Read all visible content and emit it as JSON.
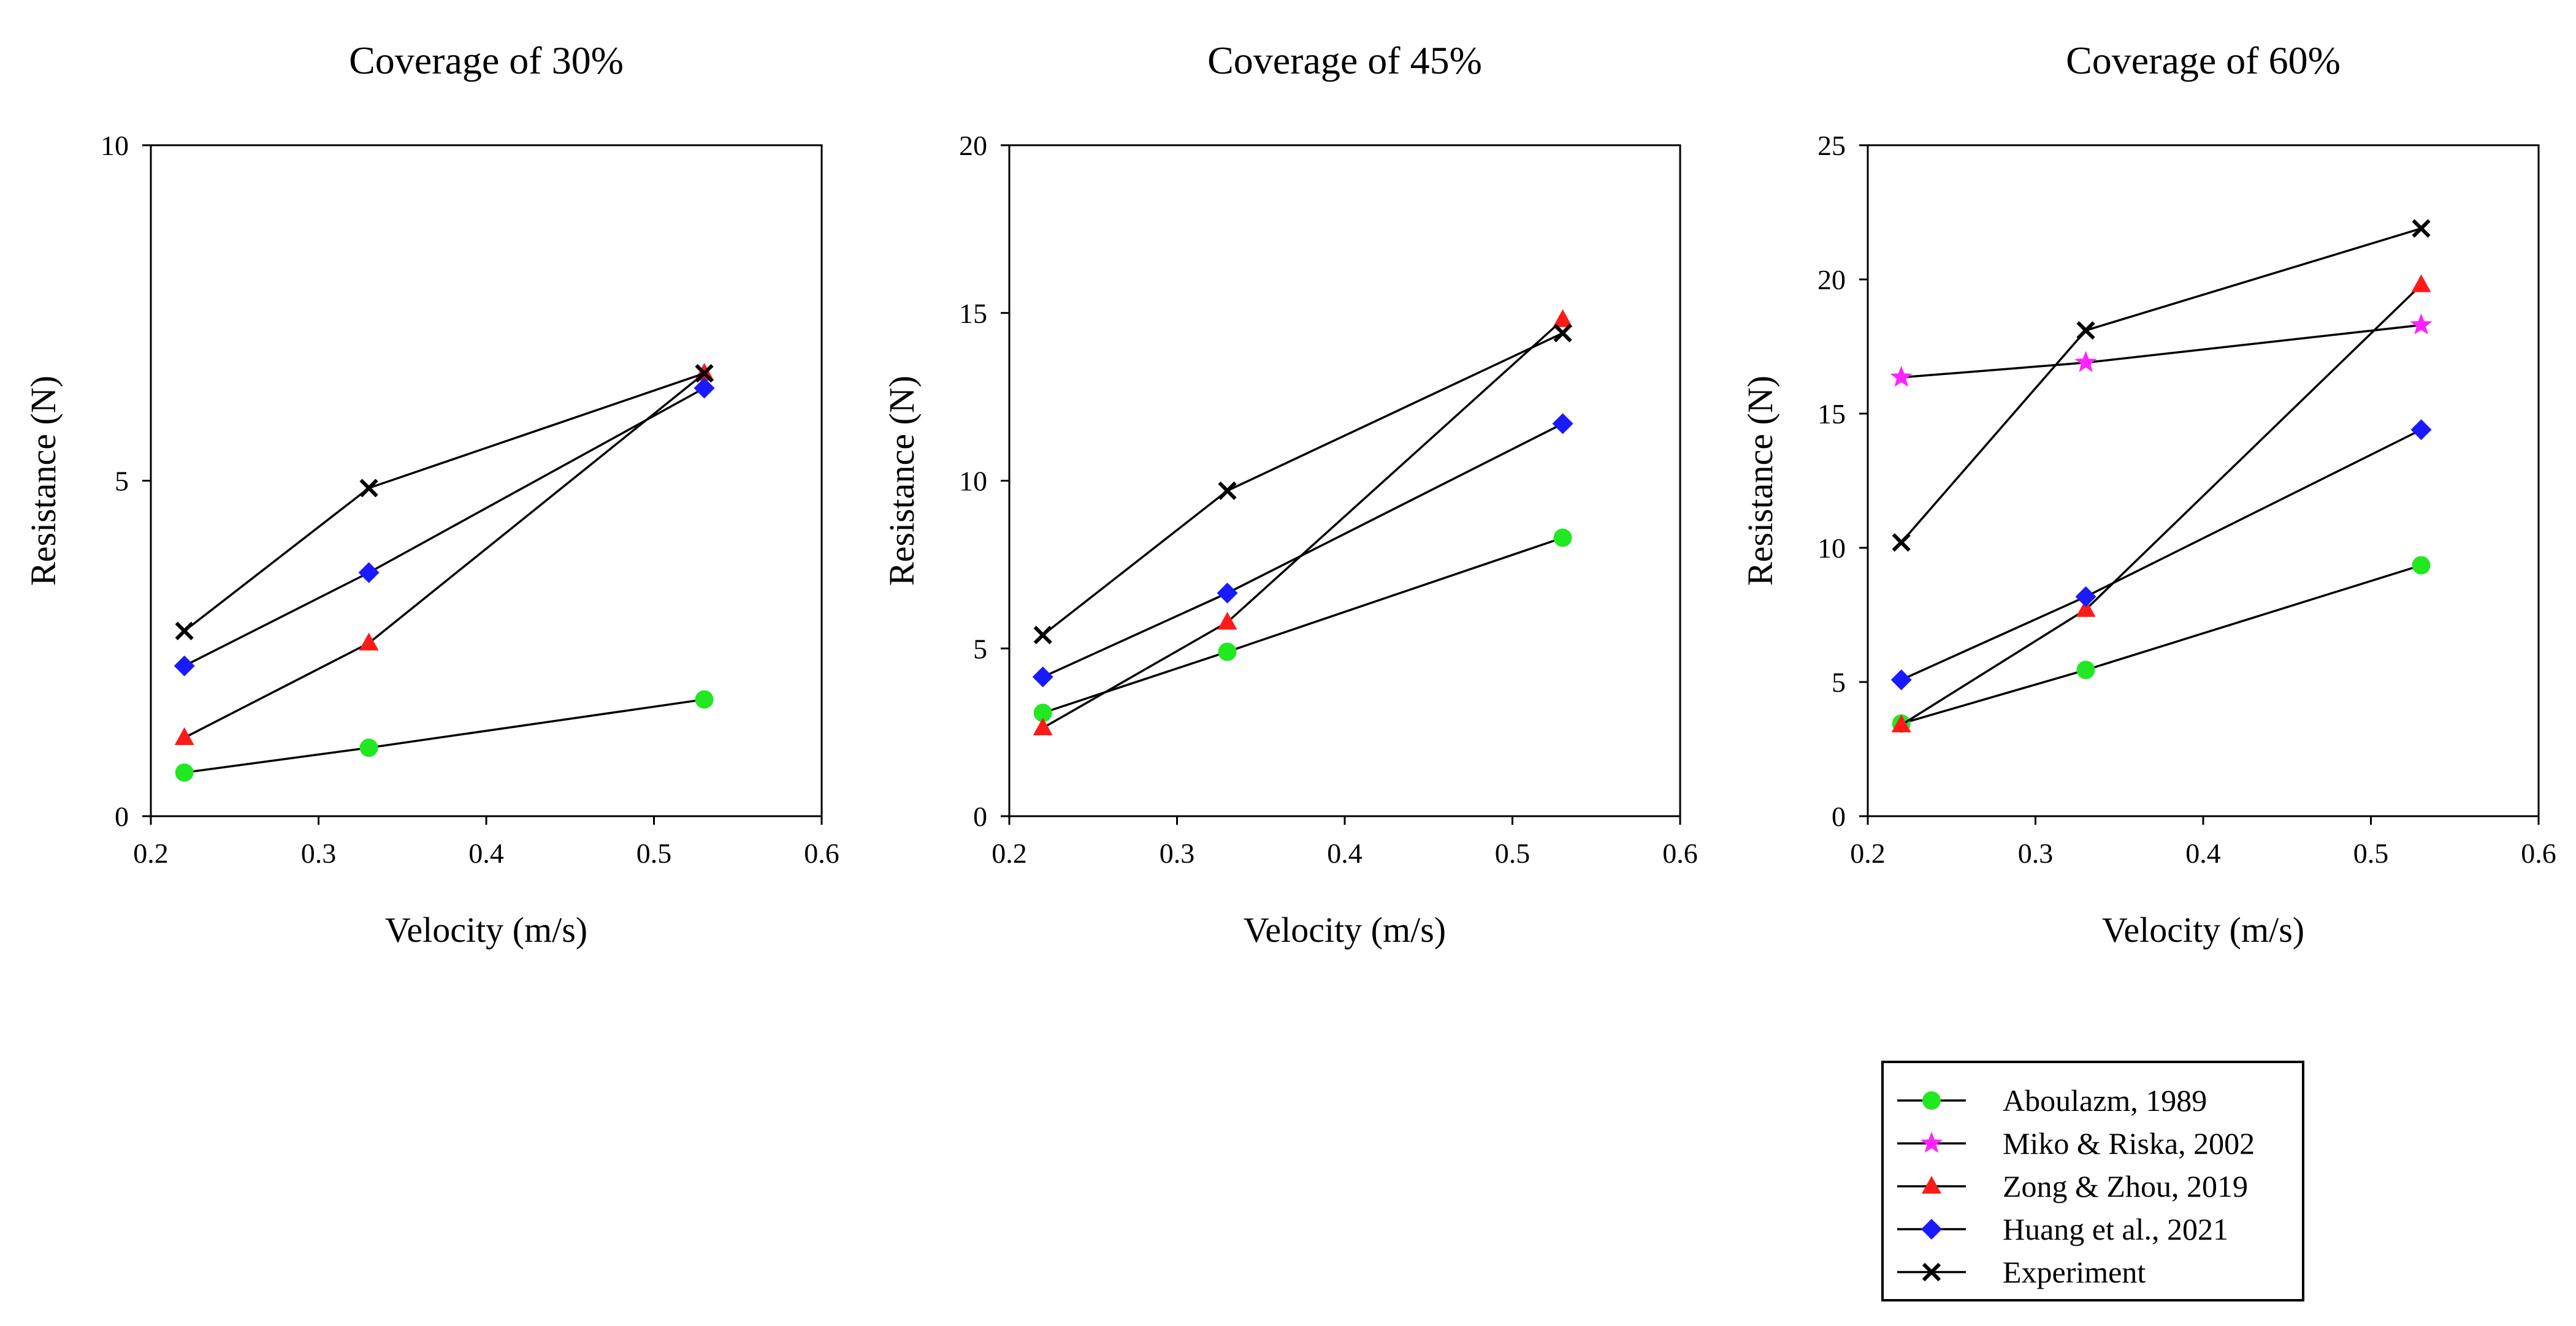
{
  "figure": {
    "xlabel": "Velocity (m/s)",
    "ylabel": "Resistance (N)"
  },
  "series_styles": [
    {
      "name": "Aboulazm, 1989",
      "marker": "circle",
      "color": "#22e822"
    },
    {
      "name": "Miko & Riska, 2002",
      "marker": "star",
      "color": "#ff22ff"
    },
    {
      "name": "Zong & Zhou, 2019",
      "marker": "triangle",
      "color": "#ff1a1a"
    },
    {
      "name": "Huang et al., 2021",
      "marker": "diamond",
      "color": "#1a1aff"
    },
    {
      "name": "Experiment",
      "marker": "x",
      "color": "#000000"
    }
  ],
  "legend": {
    "entries": [
      "Aboulazm, 1989",
      "Miko & Riska, 2002",
      "Zong & Zhou, 2019",
      "Huang et al., 2021",
      "Experiment"
    ],
    "placement": "bottom-right"
  },
  "chart_data": [
    {
      "type": "line",
      "title": "Coverage of 30%",
      "xlabel": "Velocity (m/s)",
      "ylabel": "Resistance (N)",
      "xlim": [
        0.2,
        0.6
      ],
      "ylim": [
        0,
        10
      ],
      "xticks": [
        "0.2",
        "0.3",
        "0.4",
        "0.5",
        "0.6"
      ],
      "yticks": [
        "0",
        "5",
        "10"
      ],
      "grid": false,
      "series": [
        {
          "name": "Aboulazm, 1989",
          "x": [
            0.22,
            0.33,
            0.53
          ],
          "y": [
            0.65,
            1.02,
            1.74
          ]
        },
        {
          "name": "Zong & Zhou, 2019",
          "x": [
            0.22,
            0.33,
            0.53
          ],
          "y": [
            1.17,
            2.58,
            6.6
          ]
        },
        {
          "name": "Huang et al., 2021",
          "x": [
            0.22,
            0.33,
            0.53
          ],
          "y": [
            2.24,
            3.63,
            6.38
          ]
        },
        {
          "name": "Experiment",
          "x": [
            0.22,
            0.33,
            0.53
          ],
          "y": [
            2.76,
            4.89,
            6.6
          ]
        }
      ]
    },
    {
      "type": "line",
      "title": "Coverage of 45%",
      "xlabel": "Velocity (m/s)",
      "ylabel": "Resistance (N)",
      "xlim": [
        0.2,
        0.6
      ],
      "ylim": [
        0,
        20
      ],
      "xticks": [
        "0.2",
        "0.3",
        "0.4",
        "0.5",
        "0.6"
      ],
      "yticks": [
        "0",
        "5",
        "10",
        "15",
        "20"
      ],
      "grid": false,
      "series": [
        {
          "name": "Aboulazm, 1989",
          "x": [
            0.22,
            0.33,
            0.53
          ],
          "y": [
            3.08,
            4.9,
            8.3
          ]
        },
        {
          "name": "Zong & Zhou, 2019",
          "x": [
            0.22,
            0.33,
            0.53
          ],
          "y": [
            2.63,
            5.78,
            14.8
          ]
        },
        {
          "name": "Huang et al., 2021",
          "x": [
            0.22,
            0.33,
            0.53
          ],
          "y": [
            4.15,
            6.65,
            11.7
          ]
        },
        {
          "name": "Experiment",
          "x": [
            0.22,
            0.33,
            0.53
          ],
          "y": [
            5.4,
            9.7,
            14.4
          ]
        }
      ]
    },
    {
      "type": "line",
      "title": "Coverage of 60%",
      "xlabel": "Velocity (m/s)",
      "ylabel": "Resistance (N)",
      "xlim": [
        0.2,
        0.6
      ],
      "ylim": [
        0,
        25
      ],
      "xticks": [
        "0.2",
        "0.3",
        "0.4",
        "0.5",
        "0.6"
      ],
      "yticks": [
        "0",
        "5",
        "10",
        "15",
        "20",
        "25"
      ],
      "grid": false,
      "series": [
        {
          "name": "Aboulazm, 1989",
          "x": [
            0.22,
            0.33,
            0.53
          ],
          "y": [
            3.45,
            5.45,
            9.35
          ]
        },
        {
          "name": "Miko & Riska, 2002",
          "x": [
            0.22,
            0.33,
            0.53
          ],
          "y": [
            16.35,
            16.9,
            18.3
          ]
        },
        {
          "name": "Zong & Zhou, 2019",
          "x": [
            0.22,
            0.33,
            0.53
          ],
          "y": [
            3.4,
            7.7,
            19.8
          ]
        },
        {
          "name": "Huang et al., 2021",
          "x": [
            0.22,
            0.33,
            0.53
          ],
          "y": [
            5.08,
            8.18,
            14.4
          ]
        },
        {
          "name": "Experiment",
          "x": [
            0.22,
            0.33,
            0.53
          ],
          "y": [
            10.2,
            18.1,
            21.9
          ]
        }
      ]
    }
  ]
}
